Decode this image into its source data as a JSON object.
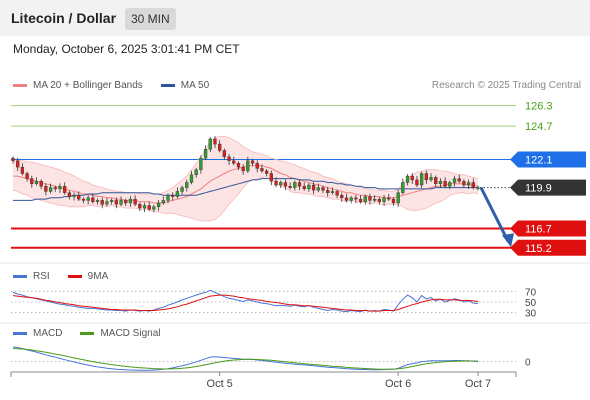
{
  "header": {
    "title": "Litecoin / Dollar",
    "interval": "30 MIN",
    "timestamp": "Monday, October 6, 2025 3:01:41 PM CET"
  },
  "legend": {
    "ma20_label": "MA 20 + Bollinger Bands",
    "ma20_color": "#f08080",
    "ma50_label": "MA 50",
    "ma50_color": "#2e5597",
    "credit": "Research © 2025 Trading Central"
  },
  "rsi_legend": {
    "rsi_label": "RSI",
    "rsi_color": "#4a74d8",
    "ma_label": "9MA",
    "ma_color": "#e01010"
  },
  "macd_legend": {
    "macd_label": "MACD",
    "macd_color": "#4a74d8",
    "signal_label": "MACD Signal",
    "signal_color": "#4a9a1a"
  },
  "chart_data": [
    {
      "type": "candlestick",
      "ylim": [
        114.4,
        126.9
      ],
      "levels": [
        {
          "value": 126.3,
          "label": "126.3",
          "style": "green-line",
          "color": "#6bbf3a"
        },
        {
          "value": 124.7,
          "label": "124.7",
          "style": "green-line",
          "color": "#6bbf3a"
        },
        {
          "value": 122.1,
          "label": "122.1",
          "style": "blue-line",
          "color": "#1e6fe8"
        },
        {
          "value": 119.9,
          "label": "119.9",
          "style": "current-price",
          "color": "#333333"
        },
        {
          "value": 116.7,
          "label": "116.7",
          "style": "red-line",
          "color": "#e01010"
        },
        {
          "value": 115.2,
          "label": "115.2",
          "style": "red-line",
          "color": "#e01010"
        }
      ],
      "forecast_arrow": {
        "from": 119.9,
        "to": 115.4,
        "color": "#2e5fa8"
      },
      "close": [
        122.0,
        121.5,
        121.0,
        120.6,
        120.2,
        120.4,
        120.0,
        119.6,
        119.9,
        119.8,
        120.0,
        119.5,
        119.2,
        119.3,
        119.0,
        118.9,
        119.1,
        118.8,
        118.9,
        118.6,
        118.8,
        118.9,
        118.6,
        118.9,
        118.7,
        119.0,
        118.6,
        118.3,
        118.5,
        118.2,
        118.4,
        118.7,
        118.9,
        119.3,
        119.2,
        119.6,
        119.9,
        120.3,
        120.9,
        121.3,
        122.2,
        122.9,
        123.7,
        123.3,
        122.8,
        122.3,
        122.0,
        121.8,
        121.5,
        121.2,
        122.0,
        121.8,
        121.4,
        121.2,
        121.0,
        120.4,
        120.1,
        120.3,
        120.0,
        119.9,
        120.3,
        120.0,
        119.8,
        120.1,
        119.7,
        119.9,
        119.7,
        119.5,
        119.6,
        119.3,
        119.1,
        118.9,
        119.1,
        119.0,
        118.8,
        119.2,
        118.9,
        119.0,
        118.8,
        119.1,
        119.0,
        118.7,
        119.5,
        120.3,
        120.8,
        120.5,
        120.1,
        121.0,
        120.5,
        120.7,
        120.2,
        120.4,
        120.0,
        120.3,
        120.6,
        120.4,
        120.1,
        120.3,
        119.9,
        119.9
      ],
      "ma20": [
        120.8,
        120.8,
        120.7,
        120.6,
        120.5,
        120.4,
        120.3,
        120.2,
        120.1,
        120.0,
        119.9,
        119.8,
        119.7,
        119.6,
        119.5,
        119.4,
        119.4,
        119.3,
        119.2,
        119.2,
        119.1,
        119.1,
        119.0,
        119.0,
        118.9,
        118.9,
        118.9,
        118.8,
        118.8,
        118.8,
        118.7,
        118.7,
        118.7,
        118.8,
        118.9,
        119.0,
        119.1,
        119.2,
        119.4,
        119.6,
        119.8,
        120.1,
        120.4,
        120.6,
        120.8,
        121.0,
        121.2,
        121.3,
        121.4,
        121.5,
        121.6,
        121.6,
        121.6,
        121.6,
        121.5,
        121.4,
        121.2,
        121.0,
        120.9,
        120.7,
        120.6,
        120.5,
        120.4,
        120.3,
        120.2,
        120.1,
        120.0,
        119.9,
        119.8,
        119.7,
        119.6,
        119.5,
        119.5,
        119.4,
        119.3,
        119.3,
        119.2,
        119.2,
        119.2,
        119.1,
        119.1,
        119.1,
        119.2,
        119.3,
        119.4,
        119.5,
        119.6,
        119.7,
        119.8,
        119.9,
        120.0,
        120.0,
        120.1,
        120.2,
        120.2,
        120.2,
        120.2,
        120.1,
        120.1,
        120.0
      ],
      "bb_upper": [
        121.9,
        122.0,
        122.0,
        121.9,
        121.9,
        121.8,
        121.7,
        121.6,
        121.5,
        121.4,
        121.3,
        121.1,
        121.0,
        120.8,
        120.6,
        120.4,
        120.3,
        120.1,
        120.0,
        119.9,
        119.8,
        119.7,
        119.6,
        119.6,
        119.5,
        119.5,
        119.5,
        119.4,
        119.4,
        119.4,
        119.4,
        119.4,
        119.5,
        119.7,
        119.9,
        120.2,
        120.5,
        120.8,
        121.3,
        121.8,
        122.3,
        122.9,
        123.5,
        123.8,
        123.9,
        123.9,
        123.8,
        123.6,
        123.4,
        123.1,
        122.9,
        122.7,
        122.6,
        122.5,
        122.4,
        122.2,
        122.1,
        122.0,
        121.9,
        121.8,
        121.7,
        121.5,
        121.4,
        121.2,
        121.1,
        121.0,
        120.8,
        120.7,
        120.6,
        120.4,
        120.3,
        120.2,
        120.1,
        120.0,
        119.9,
        119.8,
        119.8,
        119.7,
        119.7,
        119.7,
        119.6,
        119.6,
        119.8,
        120.2,
        120.6,
        120.9,
        121.1,
        121.2,
        121.3,
        121.3,
        121.3,
        121.2,
        121.2,
        121.1,
        121.0,
        120.9,
        120.9,
        120.8,
        120.7,
        120.6
      ],
      "bb_lower": [
        119.7,
        119.6,
        119.4,
        119.3,
        119.1,
        119.0,
        118.9,
        118.8,
        118.7,
        118.6,
        118.5,
        118.5,
        118.4,
        118.4,
        118.4,
        118.4,
        118.5,
        118.5,
        118.4,
        118.5,
        118.4,
        118.5,
        118.4,
        118.4,
        118.3,
        118.3,
        118.3,
        118.2,
        118.2,
        118.2,
        118.0,
        118.0,
        117.9,
        117.9,
        117.9,
        117.8,
        117.7,
        117.6,
        117.5,
        117.4,
        117.3,
        117.3,
        117.3,
        117.4,
        117.7,
        118.1,
        118.6,
        119.0,
        119.4,
        119.9,
        120.3,
        120.5,
        120.6,
        120.7,
        120.6,
        120.6,
        120.3,
        120.0,
        119.9,
        119.6,
        119.5,
        119.5,
        119.4,
        119.4,
        119.3,
        119.2,
        119.2,
        119.1,
        119.0,
        119.0,
        118.9,
        118.8,
        118.9,
        118.8,
        118.7,
        118.8,
        118.6,
        118.7,
        118.7,
        118.5,
        118.6,
        118.6,
        118.6,
        118.4,
        118.2,
        118.1,
        118.1,
        118.2,
        118.3,
        118.5,
        118.7,
        118.8,
        119.0,
        119.3,
        119.4,
        119.5,
        119.5,
        119.4,
        119.5,
        119.4
      ],
      "ma50": [
        118.9,
        118.9,
        118.9,
        118.9,
        118.9,
        119.0,
        119.0,
        119.0,
        119.1,
        119.1,
        119.1,
        119.2,
        119.2,
        119.3,
        119.3,
        119.3,
        119.4,
        119.4,
        119.4,
        119.5,
        119.5,
        119.5,
        119.5,
        119.5,
        119.5,
        119.5,
        119.5,
        119.5,
        119.5,
        119.5,
        119.4,
        119.4,
        119.3,
        119.3,
        119.3,
        119.3,
        119.3,
        119.3,
        119.3,
        119.3,
        119.4,
        119.5,
        119.6,
        119.7,
        119.8,
        119.9,
        120.0,
        120.1,
        120.2,
        120.3,
        120.4,
        120.5,
        120.5,
        120.6,
        120.6,
        120.6,
        120.6,
        120.6,
        120.6,
        120.6,
        120.6,
        120.5,
        120.5,
        120.5,
        120.4,
        120.4,
        120.4,
        120.3,
        120.3,
        120.2,
        120.2,
        120.1,
        120.1,
        120.0,
        120.0,
        119.9,
        119.9,
        119.9,
        119.8,
        119.8,
        119.8,
        119.8,
        119.8,
        119.8,
        119.8,
        119.8,
        119.8,
        119.8,
        119.8,
        119.8,
        119.9,
        119.9,
        119.9,
        119.9,
        119.9,
        119.9,
        119.9,
        119.9,
        119.9,
        119.9
      ]
    },
    {
      "type": "line",
      "name": "RSI",
      "ylim": [
        20,
        80
      ],
      "ticks": [
        70,
        50,
        30
      ],
      "rsi": [
        68,
        65,
        63,
        60,
        58,
        56,
        54,
        52,
        50,
        48,
        46,
        45,
        43,
        42,
        40,
        39,
        38,
        38,
        37,
        36,
        35,
        35,
        34,
        34,
        33,
        35,
        34,
        33,
        34,
        33,
        35,
        38,
        40,
        44,
        47,
        50,
        54,
        57,
        60,
        63,
        66,
        68,
        72,
        68,
        64,
        60,
        57,
        55,
        53,
        51,
        54,
        52,
        50,
        48,
        47,
        45,
        43,
        44,
        43,
        42,
        44,
        42,
        41,
        43,
        40,
        38,
        36,
        34,
        36,
        35,
        33,
        32,
        34,
        33,
        32,
        35,
        33,
        34,
        33,
        36,
        35,
        33,
        45,
        55,
        63,
        58,
        50,
        62,
        56,
        58,
        52,
        55,
        50,
        53,
        56,
        54,
        50,
        52,
        48,
        47
      ],
      "ma9": [
        62,
        61,
        60,
        59,
        58,
        57,
        55,
        53,
        52,
        50,
        49,
        47,
        46,
        45,
        43,
        42,
        41,
        40,
        39,
        38,
        37,
        36,
        36,
        35,
        35,
        35,
        35,
        34,
        34,
        34,
        34,
        35,
        36,
        37,
        39,
        41,
        44,
        46,
        49,
        52,
        55,
        58,
        61,
        62,
        63,
        63,
        62,
        61,
        59,
        58,
        56,
        55,
        54,
        53,
        51,
        50,
        49,
        48,
        46,
        45,
        45,
        44,
        43,
        43,
        42,
        41,
        40,
        39,
        38,
        37,
        36,
        35,
        35,
        34,
        34,
        34,
        33,
        33,
        33,
        34,
        34,
        34,
        36,
        39,
        42,
        45,
        47,
        50,
        52,
        54,
        55,
        55,
        54,
        54,
        54,
        53,
        53,
        53,
        52,
        51
      ]
    },
    {
      "type": "line",
      "name": "MACD",
      "ylim": [
        -1.0,
        1.2
      ],
      "ticks": [
        0
      ],
      "macd": [
        0.9,
        0.85,
        0.8,
        0.72,
        0.65,
        0.58,
        0.5,
        0.42,
        0.34,
        0.27,
        0.2,
        0.12,
        0.05,
        -0.02,
        -0.09,
        -0.15,
        -0.21,
        -0.27,
        -0.32,
        -0.36,
        -0.4,
        -0.43,
        -0.46,
        -0.48,
        -0.5,
        -0.51,
        -0.52,
        -0.53,
        -0.53,
        -0.53,
        -0.52,
        -0.5,
        -0.47,
        -0.43,
        -0.38,
        -0.32,
        -0.25,
        -0.18,
        -0.1,
        -0.01,
        0.08,
        0.18,
        0.28,
        0.3,
        0.28,
        0.25,
        0.22,
        0.2,
        0.18,
        0.15,
        0.15,
        0.13,
        0.1,
        0.07,
        0.04,
        0.0,
        -0.04,
        -0.07,
        -0.1,
        -0.13,
        -0.15,
        -0.18,
        -0.2,
        -0.22,
        -0.25,
        -0.28,
        -0.31,
        -0.34,
        -0.36,
        -0.38,
        -0.41,
        -0.44,
        -0.45,
        -0.46,
        -0.48,
        -0.48,
        -0.49,
        -0.49,
        -0.5,
        -0.48,
        -0.47,
        -0.47,
        -0.4,
        -0.3,
        -0.18,
        -0.12,
        -0.08,
        0.0,
        0.02,
        0.05,
        0.05,
        0.06,
        0.05,
        0.06,
        0.07,
        0.07,
        0.05,
        0.05,
        0.02,
        0.0
      ],
      "signal": [
        0.8,
        0.79,
        0.77,
        0.74,
        0.71,
        0.67,
        0.62,
        0.57,
        0.52,
        0.46,
        0.41,
        0.35,
        0.29,
        0.23,
        0.17,
        0.11,
        0.05,
        0.0,
        -0.05,
        -0.1,
        -0.14,
        -0.18,
        -0.22,
        -0.26,
        -0.29,
        -0.32,
        -0.35,
        -0.37,
        -0.39,
        -0.41,
        -0.43,
        -0.44,
        -0.45,
        -0.45,
        -0.44,
        -0.43,
        -0.41,
        -0.38,
        -0.34,
        -0.3,
        -0.25,
        -0.19,
        -0.13,
        -0.07,
        -0.02,
        0.03,
        0.07,
        0.1,
        0.12,
        0.13,
        0.14,
        0.14,
        0.13,
        0.12,
        0.1,
        0.08,
        0.05,
        0.02,
        -0.01,
        -0.04,
        -0.07,
        -0.1,
        -0.13,
        -0.15,
        -0.18,
        -0.2,
        -0.23,
        -0.25,
        -0.28,
        -0.3,
        -0.32,
        -0.35,
        -0.37,
        -0.39,
        -0.41,
        -0.42,
        -0.44,
        -0.45,
        -0.46,
        -0.46,
        -0.46,
        -0.46,
        -0.44,
        -0.41,
        -0.36,
        -0.3,
        -0.24,
        -0.18,
        -0.13,
        -0.09,
        -0.06,
        -0.03,
        -0.01,
        0.01,
        0.02,
        0.03,
        0.04,
        0.04,
        0.04,
        0.03
      ]
    }
  ],
  "x_axis": {
    "labels": [
      {
        "text": "Oct 5",
        "index": 45
      },
      {
        "text": "Oct 6",
        "index": 83
      },
      {
        "text": "Oct 7",
        "index": 100
      }
    ]
  }
}
